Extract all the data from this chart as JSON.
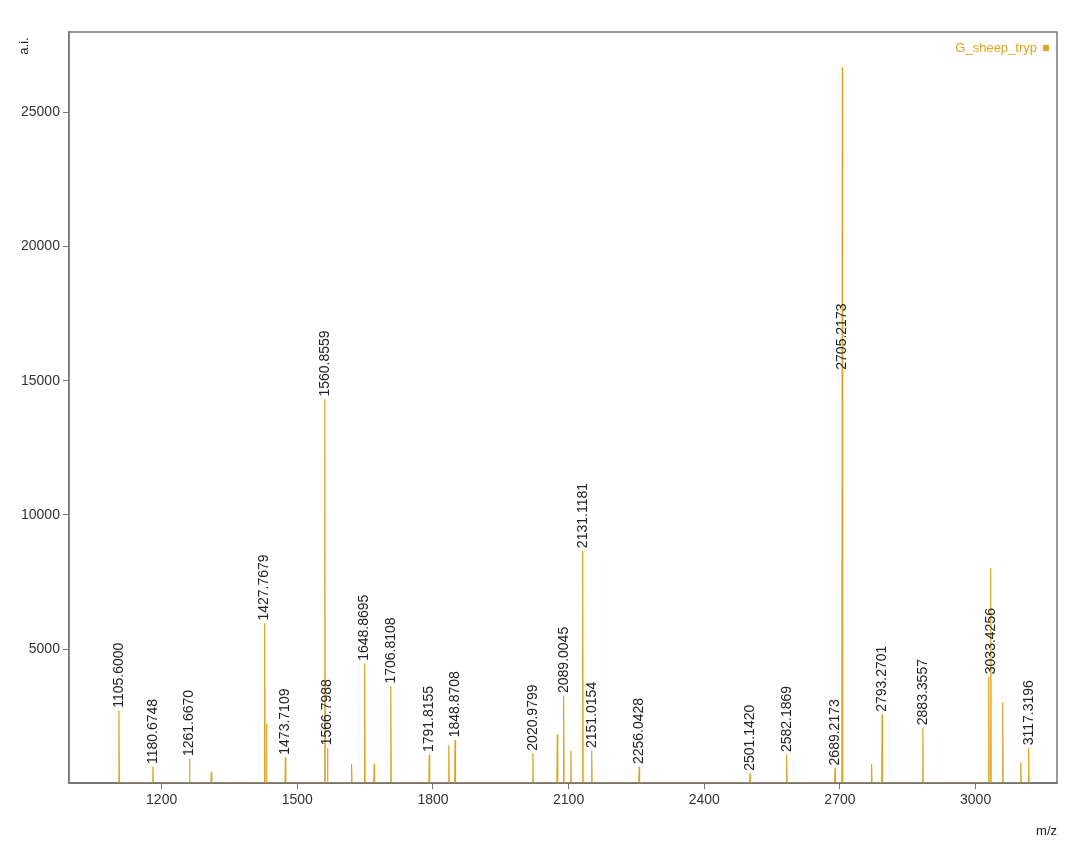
{
  "chart_data": {
    "type": "line",
    "xlabel": "m/z",
    "ylabel": "a.i.",
    "xlim": [
      995,
      3180
    ],
    "ylim": [
      0,
      28000
    ],
    "xticks": [
      1200,
      1500,
      1800,
      2100,
      2400,
      2700,
      3000
    ],
    "yticks": [
      5000,
      10000,
      15000,
      20000,
      25000
    ],
    "grid": false,
    "legend": "top right",
    "marker": "none",
    "line_style": "solid",
    "series": [
      {
        "name": "G_sheep_tryp",
        "color": "#daa520",
        "x": [
          1104.6,
          1105.6,
          1106.6,
          1179.7,
          1180.6748,
          1181.7,
          1260.7,
          1261.667,
          1262.7,
          1309,
          1310,
          1311,
          1426.8,
          1427.7679,
          1428.8,
          1431,
          1432,
          1433,
          1472.7,
          1473.7109,
          1474.7,
          1559.9,
          1560.8559,
          1561.9,
          1565.8,
          1566.7988,
          1567.8,
          1619,
          1620,
          1621,
          1647.9,
          1648.8695,
          1649.9,
          1669,
          1670,
          1671,
          1705.8,
          1706.8108,
          1707.8,
          1790.8,
          1791.8155,
          1792.8,
          1834,
          1835,
          1836,
          1847.9,
          1848.8708,
          1849.9,
          2020,
          2020.9799,
          2022,
          2074,
          2075,
          2076,
          2088,
          2089.0045,
          2090,
          2104,
          2105,
          2106,
          2130.1,
          2131.1181,
          2132.1,
          2150,
          2151.0154,
          2152,
          2255,
          2256.0428,
          2257,
          2500.1,
          2501.142,
          2502.1,
          2581.2,
          2582.1869,
          2583.2,
          2688.2,
          2689.2173,
          2690.2,
          2704.2,
          2705.2173,
          2706.2,
          2769,
          2770,
          2771,
          2792.3,
          2793.2701,
          2794.3,
          2882.4,
          2883.3557,
          2884.4,
          3028,
          3029,
          3030,
          3032.4,
          3033.4256,
          3034.4,
          3059,
          3060,
          3061,
          3099,
          3100,
          3101,
          3116.3,
          3117.3196,
          3118.3
        ],
        "values": [
          0,
          2700,
          0,
          0,
          600,
          0,
          0,
          900,
          0,
          0,
          400,
          0,
          0,
          5950,
          0,
          0,
          2200,
          0,
          0,
          950,
          0,
          0,
          14300,
          0,
          0,
          1300,
          0,
          0,
          700,
          0,
          0,
          4450,
          0,
          0,
          700,
          0,
          0,
          3600,
          0,
          0,
          1050,
          0,
          0,
          1400,
          0,
          0,
          1600,
          0,
          0,
          1100,
          0,
          0,
          1800,
          0,
          0,
          3250,
          0,
          0,
          1200,
          0,
          0,
          8650,
          0,
          0,
          1200,
          0,
          0,
          600,
          0,
          0,
          350,
          0,
          0,
          1050,
          0,
          0,
          550,
          0,
          0,
          26650,
          0,
          0,
          700,
          0,
          0,
          2550,
          0,
          0,
          2050,
          0,
          0,
          3950,
          0,
          0,
          8000,
          0,
          0,
          3000,
          0,
          0,
          750,
          0,
          0,
          1300,
          0
        ]
      }
    ],
    "annotations": [
      {
        "text": "1105.6000",
        "x": 1105.6,
        "y": 2700
      },
      {
        "text": "1180.6748",
        "x": 1180.6748,
        "y": 600
      },
      {
        "text": "1261.6670",
        "x": 1261.667,
        "y": 900
      },
      {
        "text": "1427.7679",
        "x": 1427.7679,
        "y": 5950
      },
      {
        "text": "1473.7109",
        "x": 1473.7109,
        "y": 950
      },
      {
        "text": "1560.8559",
        "x": 1560.8559,
        "y": 14300
      },
      {
        "text": "1566.7988",
        "x": 1566.7988,
        "y": 1300
      },
      {
        "text": "1648.8695",
        "x": 1648.8695,
        "y": 4450
      },
      {
        "text": "1706.8108",
        "x": 1706.8108,
        "y": 3600
      },
      {
        "text": "1791.8155",
        "x": 1791.8155,
        "y": 1050
      },
      {
        "text": "1848.8708",
        "x": 1848.8708,
        "y": 1600
      },
      {
        "text": "2020.9799",
        "x": 2020.9799,
        "y": 1100
      },
      {
        "text": "2089.0045",
        "x": 2089.0045,
        "y": 3250
      },
      {
        "text": "2131.1181",
        "x": 2131.1181,
        "y": 8650
      },
      {
        "text": "2151.0154",
        "x": 2151.0154,
        "y": 1200
      },
      {
        "text": "2256.0428",
        "x": 2256.0428,
        "y": 600
      },
      {
        "text": "2501.1420",
        "x": 2501.142,
        "y": 350
      },
      {
        "text": "2582.1869",
        "x": 2582.1869,
        "y": 1050
      },
      {
        "text": "2689.2173",
        "x": 2689.2173,
        "y": 550
      },
      {
        "text": "2705.2173",
        "x": 2705.2173,
        "y": 15300
      },
      {
        "text": "2793.2701",
        "x": 2793.2701,
        "y": 2550
      },
      {
        "text": "2883.3557",
        "x": 2883.3557,
        "y": 2050
      },
      {
        "text": "3033.4256",
        "x": 3033.4256,
        "y": 3950
      },
      {
        "text": "3117.3196",
        "x": 3117.3196,
        "y": 1300
      }
    ]
  }
}
